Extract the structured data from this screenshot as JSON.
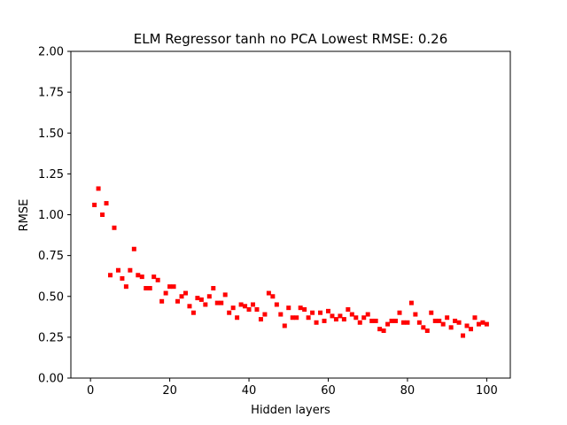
{
  "chart_data": {
    "type": "scatter",
    "title": "ELM Regressor tanh no PCA Lowest RMSE: 0.26",
    "xlabel": "Hidden layers",
    "ylabel": "RMSE",
    "xlim": [
      -4.95,
      105.95
    ],
    "ylim": [
      0,
      2.0
    ],
    "xticks": [
      0,
      20,
      40,
      60,
      80,
      100
    ],
    "xtick_labels": [
      "0",
      "20",
      "40",
      "60",
      "80",
      "100"
    ],
    "yticks": [
      0,
      0.25,
      0.5,
      0.75,
      1.0,
      1.25,
      1.5,
      1.75,
      2.0
    ],
    "ytick_labels": [
      "0.00",
      "0.25",
      "0.50",
      "0.75",
      "1.00",
      "1.25",
      "1.50",
      "1.75",
      "2.00"
    ],
    "grid": false,
    "marker": "square",
    "series": [
      {
        "color": "#ff0000",
        "x": [
          1,
          2,
          3,
          4,
          5,
          6,
          7,
          8,
          9,
          10,
          11,
          12,
          13,
          14,
          15,
          16,
          17,
          18,
          19,
          20,
          21,
          22,
          23,
          24,
          25,
          26,
          27,
          28,
          29,
          30,
          31,
          32,
          33,
          34,
          35,
          36,
          37,
          38,
          39,
          40,
          41,
          42,
          43,
          44,
          45,
          46,
          47,
          48,
          49,
          50,
          51,
          52,
          53,
          54,
          55,
          56,
          57,
          58,
          59,
          60,
          61,
          62,
          63,
          64,
          65,
          66,
          67,
          68,
          69,
          70,
          71,
          72,
          73,
          74,
          75,
          76,
          77,
          78,
          79,
          80,
          81,
          82,
          83,
          84,
          85,
          86,
          87,
          88,
          89,
          90,
          91,
          92,
          93,
          94,
          95,
          96,
          97,
          98,
          99,
          100
        ],
        "y": [
          1.06,
          1.16,
          1.0,
          1.07,
          0.63,
          0.92,
          0.66,
          0.61,
          0.56,
          0.66,
          0.79,
          0.63,
          0.62,
          0.55,
          0.55,
          0.62,
          0.6,
          0.47,
          0.52,
          0.56,
          0.56,
          0.47,
          0.5,
          0.52,
          0.44,
          0.4,
          0.49,
          0.48,
          0.45,
          0.5,
          0.55,
          0.46,
          0.46,
          0.51,
          0.4,
          0.43,
          0.37,
          0.45,
          0.44,
          0.42,
          0.45,
          0.42,
          0.36,
          0.39,
          0.52,
          0.5,
          0.45,
          0.39,
          0.32,
          0.43,
          0.37,
          0.37,
          0.43,
          0.42,
          0.37,
          0.4,
          0.34,
          0.4,
          0.35,
          0.41,
          0.38,
          0.36,
          0.38,
          0.36,
          0.42,
          0.39,
          0.37,
          0.34,
          0.37,
          0.39,
          0.35,
          0.35,
          0.3,
          0.29,
          0.33,
          0.35,
          0.35,
          0.4,
          0.34,
          0.34,
          0.46,
          0.39,
          0.34,
          0.31,
          0.29,
          0.4,
          0.35,
          0.35,
          0.33,
          0.37,
          0.31,
          0.35,
          0.34,
          0.26,
          0.32,
          0.3,
          0.37,
          0.33,
          0.34,
          0.33
        ]
      }
    ]
  }
}
